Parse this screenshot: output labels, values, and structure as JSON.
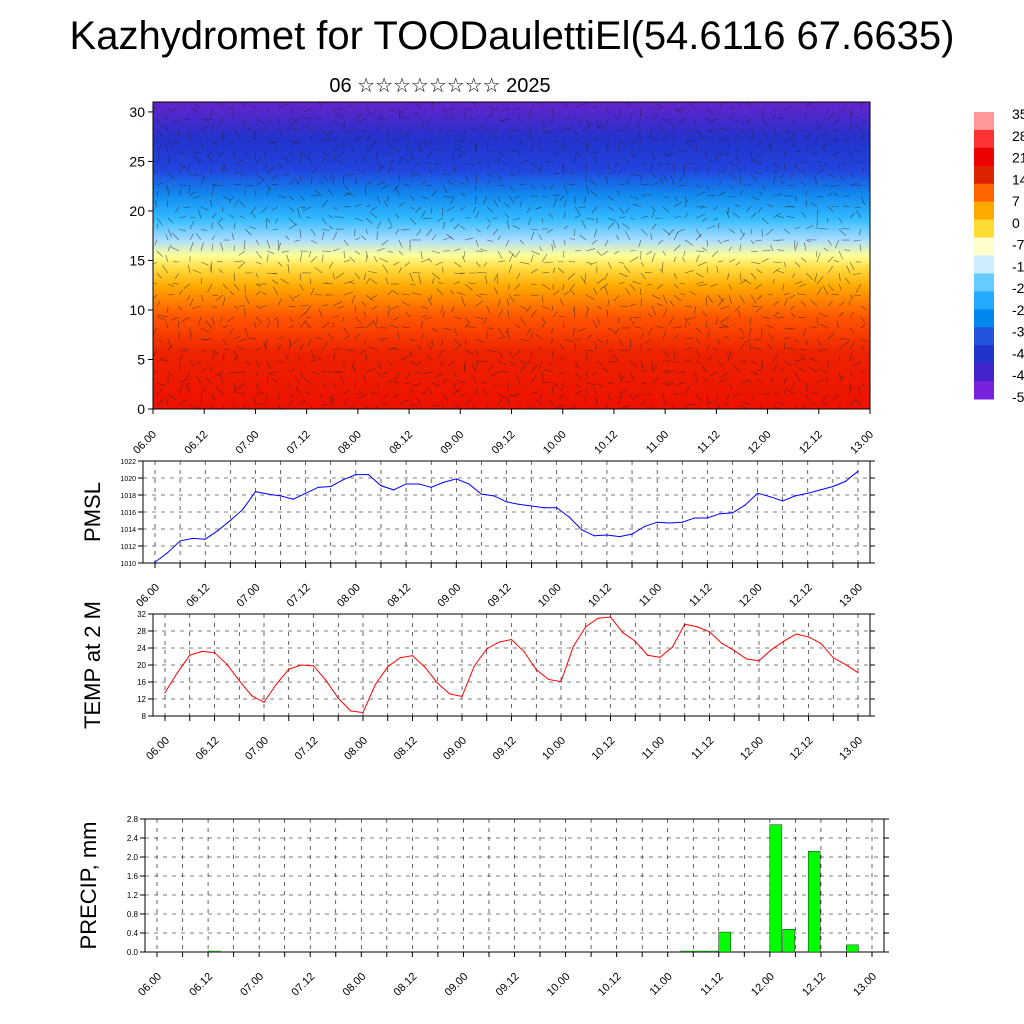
{
  "title": "Kazhydromet for TOODaulettiEl(54.6116 67.6635)",
  "subtitle": "06 ☆☆☆☆☆☆☆☆ 2025",
  "x_tick_labels": [
    "06.00",
    "06.12",
    "07.00",
    "07.12",
    "08.00",
    "08.12",
    "09.00",
    "09.12",
    "10.00",
    "10.12",
    "11.00",
    "11.12",
    "12.00",
    "12.12",
    "13.00"
  ],
  "colors": {
    "pmsl_line": "#0000ff",
    "temp_line": "#ff0000",
    "precip_bar": "#00ff00",
    "colorbar": [
      "#ff9999",
      "#ff3333",
      "#ee0000",
      "#dd2200",
      "#ff6600",
      "#ffaa00",
      "#ffdd33",
      "#ffffcc",
      "#cceeff",
      "#66ccff",
      "#22aaff",
      "#0088ee",
      "#2255dd",
      "#2233cc",
      "#4422cc",
      "#7722dd"
    ]
  },
  "chart_data": [
    {
      "type": "heatmap",
      "description_label": "upper panel",
      "y_ticks": [
        0,
        5,
        10,
        15,
        20,
        25,
        30
      ],
      "ylim": [
        0,
        31
      ],
      "colorbar_labels": [
        "35",
        "28",
        "21",
        "14",
        "7",
        "0",
        "-7",
        "-1",
        "-2",
        "-2",
        "-3",
        "-4",
        "-4",
        "-5"
      ]
    },
    {
      "type": "line",
      "ylabel": "PMSL",
      "ylim": [
        1010,
        1022
      ],
      "y_ticks": [
        1010,
        1012,
        1014,
        1016,
        1018,
        1020,
        1022
      ],
      "x_hours": [
        0,
        3,
        6,
        9,
        12,
        15,
        18,
        21,
        24,
        27,
        30,
        33,
        36,
        39,
        42,
        45,
        48,
        51,
        54,
        57,
        60,
        63,
        66,
        69,
        72,
        75,
        78,
        81,
        84,
        87,
        90,
        93,
        96,
        99,
        102,
        105,
        108,
        111,
        114,
        117,
        120,
        123,
        126,
        129,
        132,
        135,
        138,
        141,
        144,
        147,
        150,
        153,
        156,
        159,
        162,
        165,
        168
      ],
      "values": [
        1010.1,
        1011.2,
        1012.6,
        1012.9,
        1012.8,
        1013.8,
        1015.0,
        1016.3,
        1018.4,
        1018.1,
        1017.9,
        1017.5,
        1018.2,
        1018.9,
        1019.0,
        1019.8,
        1020.4,
        1020.4,
        1019.1,
        1018.6,
        1019.3,
        1019.3,
        1018.9,
        1019.5,
        1019.9,
        1019.3,
        1018.1,
        1017.9,
        1017.2,
        1016.9,
        1016.7,
        1016.5,
        1016.5,
        1015.4,
        1013.9,
        1013.2,
        1013.3,
        1013.1,
        1013.4,
        1014.3,
        1014.8,
        1014.7,
        1014.8,
        1015.3,
        1015.3,
        1015.8,
        1015.9,
        1016.8,
        1018.2,
        1017.8,
        1017.3,
        1017.9,
        1018.2,
        1018.6,
        1019.0,
        1019.6,
        1020.8
      ]
    },
    {
      "type": "line",
      "ylabel": "TEMP at 2 M",
      "ylim": [
        8,
        32
      ],
      "y_ticks": [
        8,
        12,
        16,
        20,
        24,
        28,
        32
      ],
      "x_hours": [
        0,
        3,
        6,
        9,
        12,
        15,
        18,
        21,
        24,
        27,
        30,
        33,
        36,
        39,
        42,
        45,
        48,
        51,
        54,
        57,
        60,
        63,
        66,
        69,
        72,
        75,
        78,
        81,
        84,
        87,
        90,
        93,
        96,
        99,
        102,
        105,
        108,
        111,
        114,
        117,
        120,
        123,
        126,
        129,
        132,
        135,
        138,
        141,
        144,
        147,
        150,
        153,
        156,
        159,
        162,
        165,
        168
      ],
      "values": [
        13.5,
        18.2,
        22.3,
        23.2,
        22.9,
        20.2,
        16.3,
        12.8,
        11.2,
        15.5,
        19.0,
        20.0,
        19.8,
        16.4,
        12.2,
        9.2,
        8.8,
        15.4,
        19.6,
        21.7,
        22.2,
        19.5,
        15.8,
        13.2,
        12.6,
        19.8,
        23.8,
        25.4,
        26.0,
        23.2,
        18.9,
        16.6,
        16.1,
        24.4,
        29.0,
        31.0,
        31.3,
        27.6,
        25.6,
        22.3,
        21.8,
        24.2,
        29.6,
        29.0,
        27.8,
        25.1,
        23.4,
        21.4,
        21.0,
        23.6,
        25.6,
        27.3,
        26.6,
        25.1,
        21.7,
        20.1,
        18.2
      ]
    },
    {
      "type": "bar",
      "ylabel": "PRECIP, mm",
      "ylim": [
        0,
        2.8
      ],
      "y_ticks": [
        "0.0",
        "0.4",
        "0.8",
        "1.2",
        "1.6",
        "2.0",
        "2.4",
        "2.8"
      ],
      "x_hours": [
        12,
        123,
        126,
        129,
        132,
        144,
        147,
        153,
        162
      ],
      "values": [
        0.02,
        0.02,
        0.02,
        0.02,
        0.42,
        2.68,
        0.48,
        2.12,
        0.15
      ]
    }
  ]
}
